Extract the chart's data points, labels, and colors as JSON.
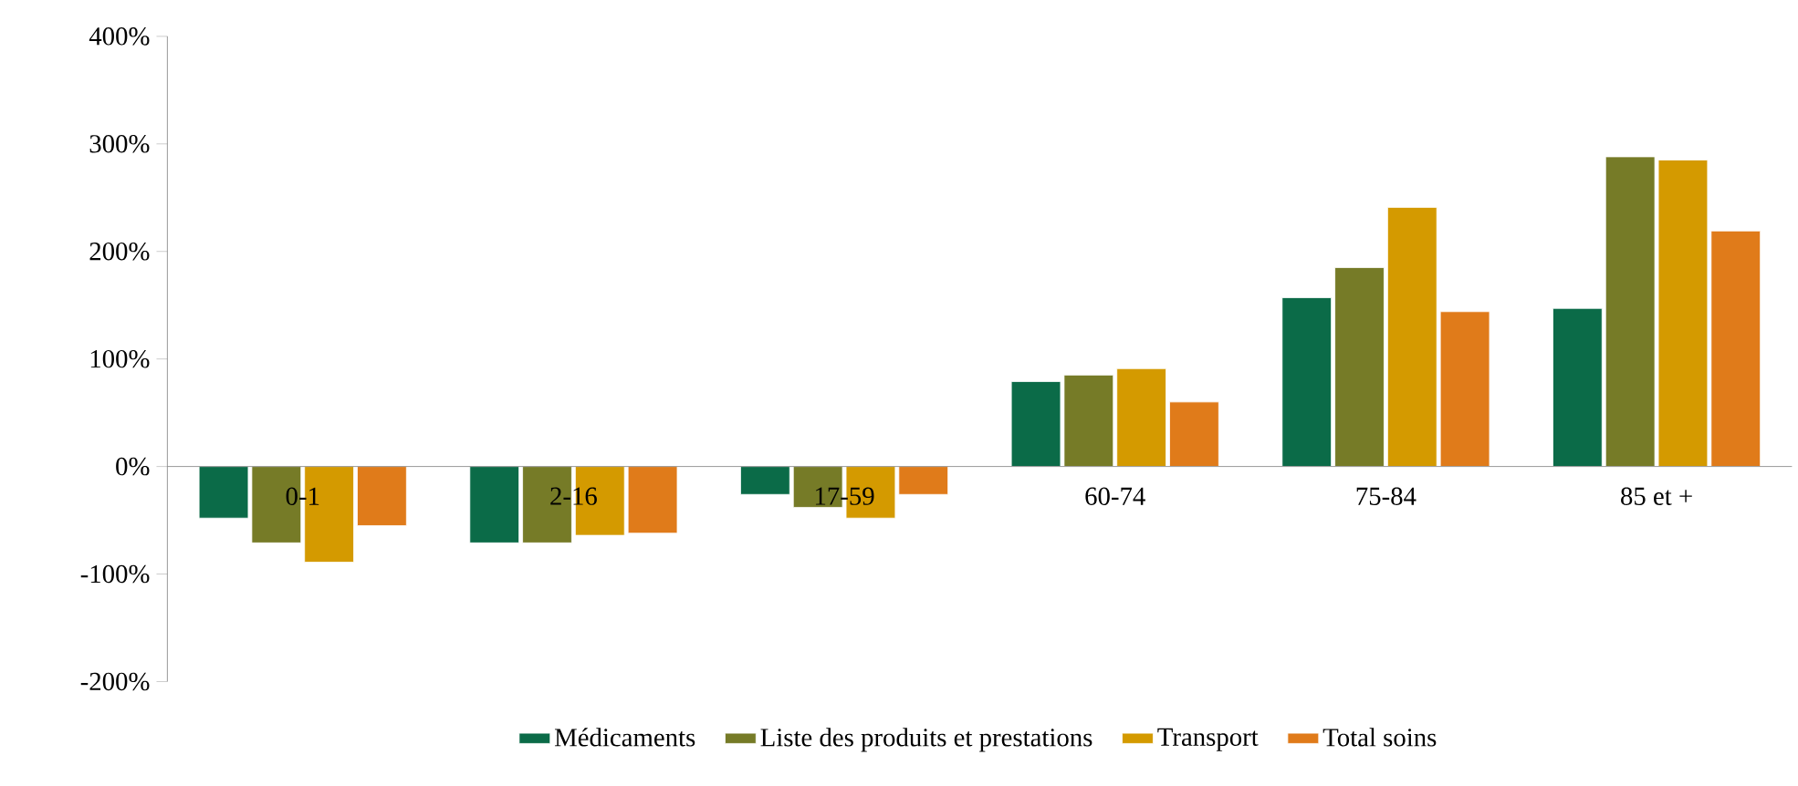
{
  "chart_data": {
    "type": "bar",
    "categories": [
      "0-1",
      "2-16",
      "17-59",
      "60-74",
      "75-84",
      "85 et +"
    ],
    "series": [
      {
        "name": "Médicaments",
        "color": "#0b6b48",
        "values": [
          -48,
          -71,
          -26,
          79,
          157,
          147
        ]
      },
      {
        "name": "Liste des produits et prestations",
        "color": "#767b27",
        "values": [
          -71,
          -71,
          -38,
          85,
          185,
          288
        ]
      },
      {
        "name": "Transport",
        "color": "#d49a00",
        "values": [
          -89,
          -64,
          -48,
          91,
          241,
          285
        ]
      },
      {
        "name": "Total soins",
        "color": "#e07b1a",
        "values": [
          -55,
          -62,
          -26,
          60,
          144,
          219
        ]
      }
    ],
    "ylim": [
      -200,
      400
    ],
    "yticks": [
      {
        "value": -200,
        "label": "-200%"
      },
      {
        "value": -100,
        "label": "-100%"
      },
      {
        "value": 0,
        "label": "0%"
      },
      {
        "value": 100,
        "label": "100%"
      },
      {
        "value": 200,
        "label": "200%"
      },
      {
        "value": 300,
        "label": "300%"
      },
      {
        "value": 400,
        "label": "400%"
      }
    ],
    "grid": false,
    "legend": "bottom"
  }
}
